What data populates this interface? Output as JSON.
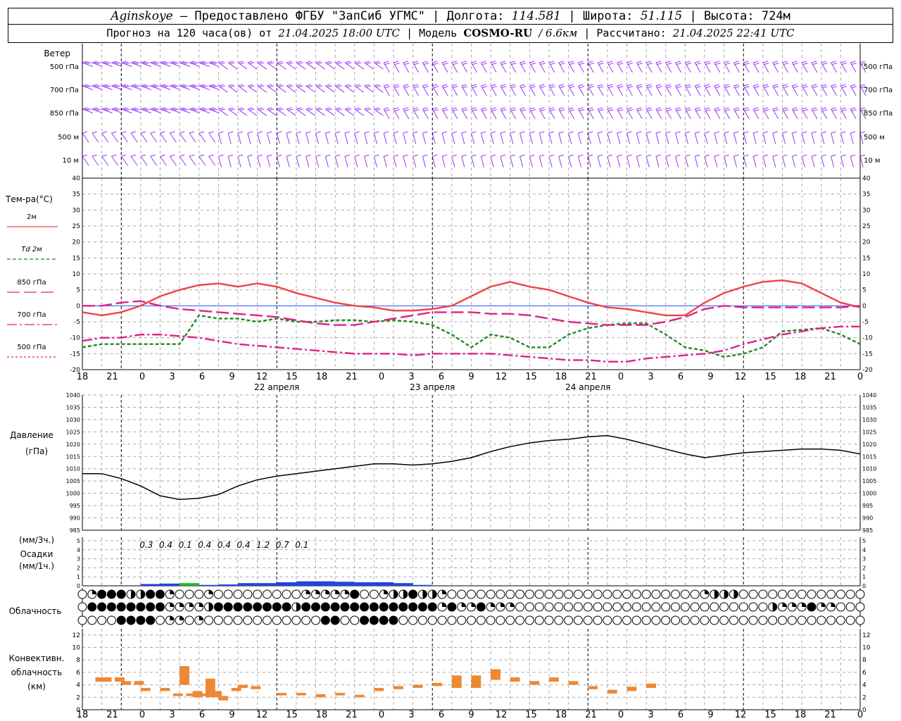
{
  "header": {
    "station": "Aginskoye",
    "provider": "– Предоставлено ФГБУ \"ЗапСиб УГМС\"",
    "lon_label": "Долгота:",
    "lon": "114.581",
    "lat_label": "Широта:",
    "lat": "51.115",
    "alt_label": "Высота:",
    "alt": "724м",
    "forecast_label": "Прогноз на 120 часа(ов) от",
    "forecast_start": "21.04.2025 18:00 UTC",
    "model_label": "Модель",
    "model": "COSMO-RU",
    "res": "/ 6.6км",
    "calc_label": "Рассчитано:",
    "calc": "21.04.2025 22:41 UTC"
  },
  "hour_ticks": [
    "18",
    "21",
    "0",
    "3",
    "6",
    "9",
    "12",
    "15",
    "18",
    "21",
    "0",
    "3",
    "6",
    "9",
    "12",
    "15",
    "18",
    "21",
    "0",
    "3",
    "6",
    "9",
    "12",
    "15",
    "18",
    "21",
    "0"
  ],
  "day_labels": [
    "22 апреля",
    "23 апреля",
    "24 апреля"
  ],
  "wind_panel": {
    "title": "Ветер",
    "levels": [
      "500 гПа",
      "700 гПа",
      "850 гПа",
      "500 м",
      "10 м"
    ],
    "barb_color": "#9933ff"
  },
  "cloud_panel": {
    "label": "Облачность",
    "rows": 3
  },
  "precip_panel": {
    "label1": "(мм/3ч.)",
    "label2": "Осадки",
    "label3": "(мм/1ч.)",
    "y_ticks": [
      "0",
      "1",
      "2",
      "3",
      "4",
      "5"
    ],
    "totals_3h": [
      "0.3",
      "0.4",
      "0.1",
      "0.4",
      "0.4",
      "0.4",
      "1.2",
      "0.7",
      "0.1"
    ]
  },
  "conv_panel": {
    "label1": "Конвективн.",
    "label2": "облачность",
    "label3": "(км)",
    "y_ticks": [
      "0",
      "2",
      "4",
      "6",
      "8",
      "10",
      "12"
    ],
    "color": "#ee8833"
  },
  "chart_data": [
    {
      "type": "line",
      "title": "Тем-ра(°C)",
      "ylim": [
        -20,
        40
      ],
      "y_ticks": [
        -20,
        -15,
        -10,
        -5,
        0,
        5,
        10,
        15,
        20,
        25,
        30,
        35,
        40
      ],
      "x_hours": [
        0,
        3,
        6,
        9,
        12,
        15,
        18,
        21,
        24,
        27,
        30,
        33,
        36,
        39,
        42,
        45,
        48,
        51,
        54,
        57,
        60,
        63,
        66,
        69,
        72,
        75,
        78,
        81,
        84,
        87,
        90,
        93,
        96,
        99,
        102,
        105,
        108,
        111,
        114,
        117,
        120
      ],
      "series": [
        {
          "name": "2м",
          "color": "#ee4444",
          "dash": "",
          "values": [
            -2,
            -3,
            -2,
            0,
            3,
            5,
            6.5,
            7,
            6,
            7,
            6,
            4,
            2.5,
            1,
            0,
            -0.5,
            -1.5,
            -1.5,
            -1,
            0,
            3,
            6,
            7.5,
            6,
            5,
            3,
            1,
            -0.5,
            -1,
            -2,
            -3,
            -3,
            1,
            4,
            6,
            7.5,
            8,
            7,
            4,
            1,
            -0.5
          ]
        },
        {
          "name": "Td 2м",
          "color": "#228822",
          "dash": "5,3",
          "values": [
            -13,
            -12,
            -12,
            -12,
            -12,
            -12,
            -3,
            -4,
            -4,
            -5,
            -4,
            -5,
            -5,
            -4.5,
            -4.5,
            -5,
            -4.5,
            -5,
            -6,
            -9,
            -13,
            -9,
            -10,
            -13,
            -13,
            -9,
            -7,
            -6,
            -5.5,
            -5.5,
            -9,
            -13,
            -14,
            -16,
            -15,
            -13,
            -8,
            -7.5,
            -7,
            -9,
            -12
          ]
        },
        {
          "name": "850 гПа",
          "color": "#dd2288",
          "dash": "18,6",
          "values": [
            0,
            0,
            1,
            1.5,
            0,
            -1,
            -1.5,
            -2,
            -2.5,
            -3,
            -3.5,
            -4.5,
            -5.5,
            -6,
            -6,
            -5,
            -4,
            -3,
            -2,
            -2,
            -2,
            -2.5,
            -2.5,
            -3,
            -4,
            -5,
            -5.5,
            -6,
            -6,
            -6,
            -5,
            -3.5,
            -1,
            0,
            -0.5,
            -0.5,
            -0.5,
            -0.5,
            -0.5,
            -0.5,
            0
          ]
        },
        {
          "name": "700 гПа",
          "color": "#dd2288",
          "dash": "14,4,3,4",
          "values": [
            -11,
            -10,
            -10,
            -9,
            -9,
            -9.5,
            -10,
            -11,
            -12,
            -12.5,
            -13,
            -13.5,
            -14,
            -14.5,
            -15,
            -15,
            -15,
            -15.5,
            -15,
            -15,
            -15,
            -15,
            -15.5,
            -16,
            -16.5,
            -17,
            -17,
            -17.5,
            -17.5,
            -16.5,
            -16,
            -15.5,
            -15,
            -14,
            -12,
            -10.5,
            -9,
            -8,
            -7,
            -6.5,
            -6.5
          ]
        },
        {
          "name": "500 гПа",
          "color": "#dd2288",
          "dash": "3,3",
          "values": []
        }
      ]
    },
    {
      "type": "line",
      "title": "Давление",
      "ylabel": "(гПа)",
      "ylim": [
        985,
        1040
      ],
      "y_ticks": [
        985,
        990,
        995,
        1000,
        1005,
        1010,
        1015,
        1020,
        1025,
        1030,
        1035,
        1040
      ],
      "x_hours": [
        0,
        3,
        6,
        9,
        12,
        15,
        18,
        21,
        24,
        27,
        30,
        33,
        36,
        39,
        42,
        45,
        48,
        51,
        54,
        57,
        60,
        63,
        66,
        69,
        72,
        75,
        78,
        81,
        84,
        87,
        90,
        93,
        96,
        99,
        102,
        105,
        108,
        111,
        114,
        117,
        120
      ],
      "series": [
        {
          "name": "",
          "color": "#000000",
          "values": [
            1008,
            1008,
            1006,
            1003,
            999,
            997.5,
            998,
            999.5,
            1003,
            1005.5,
            1007,
            1008,
            1009,
            1010,
            1011,
            1012,
            1012,
            1011.5,
            1012,
            1013,
            1014.5,
            1017,
            1019,
            1020.5,
            1021.5,
            1022,
            1023,
            1023.5,
            1022,
            1020,
            1018,
            1016,
            1014.5,
            1015.5,
            1016.5,
            1017,
            1017.5,
            1018,
            1018,
            1017.5,
            1016
          ]
        }
      ]
    },
    {
      "type": "bar",
      "title": "Осадки",
      "ylim": [
        0,
        5
      ],
      "x_hours": [
        9,
        12,
        15,
        18,
        21,
        24,
        27,
        30,
        33,
        36,
        39,
        42,
        45,
        48,
        51
      ],
      "values": [
        0.2,
        0.25,
        0.3,
        0.1,
        0.15,
        0.3,
        0.3,
        0.4,
        0.5,
        0.5,
        0.45,
        0.4,
        0.4,
        0.3,
        0.1
      ],
      "colors": [
        "#2244dd",
        "#2244dd",
        "#22bb22",
        "#2244dd",
        "#2244dd",
        "#2244dd",
        "#2244dd",
        "#2244dd",
        "#2244dd",
        "#2244dd",
        "#2244dd",
        "#2244dd",
        "#2244dd",
        "#2244dd",
        "#2244dd"
      ]
    },
    {
      "type": "bar",
      "title": "Конвективн. облачность",
      "ylim": [
        0,
        13
      ],
      "bars": [
        {
          "h": 2.0,
          "lo": 4.5,
          "hi": 5.2
        },
        {
          "h": 3.0,
          "lo": 4.5,
          "hi": 5.2
        },
        {
          "h": 5.0,
          "lo": 4.5,
          "hi": 5.2
        },
        {
          "h": 6.0,
          "lo": 4.0,
          "hi": 4.6
        },
        {
          "h": 8.0,
          "lo": 4.0,
          "hi": 4.6
        },
        {
          "h": 9.0,
          "lo": 3.0,
          "hi": 3.5
        },
        {
          "h": 12.0,
          "lo": 3.0,
          "hi": 3.5
        },
        {
          "h": 14.0,
          "lo": 2.2,
          "hi": 2.6
        },
        {
          "h": 15.0,
          "lo": 4.0,
          "hi": 7.0
        },
        {
          "h": 16.0,
          "lo": 2.2,
          "hi": 2.6
        },
        {
          "h": 17.0,
          "lo": 2.0,
          "hi": 3.0
        },
        {
          "h": 18.0,
          "lo": 2.2,
          "hi": 2.6
        },
        {
          "h": 19.0,
          "lo": 2.0,
          "hi": 5.0
        },
        {
          "h": 20.0,
          "lo": 2.0,
          "hi": 3.0
        },
        {
          "h": 21.0,
          "lo": 1.5,
          "hi": 2.2
        },
        {
          "h": 23.0,
          "lo": 3.0,
          "hi": 3.5
        },
        {
          "h": 24.0,
          "lo": 3.5,
          "hi": 4.0
        },
        {
          "h": 26.0,
          "lo": 3.3,
          "hi": 3.8
        },
        {
          "h": 30.0,
          "lo": 2.3,
          "hi": 2.7
        },
        {
          "h": 33.0,
          "lo": 2.3,
          "hi": 2.7
        },
        {
          "h": 36.0,
          "lo": 2.0,
          "hi": 2.5
        },
        {
          "h": 39.0,
          "lo": 2.3,
          "hi": 2.7
        },
        {
          "h": 42.0,
          "lo": 2.0,
          "hi": 2.4
        },
        {
          "h": 45.0,
          "lo": 3.0,
          "hi": 3.5
        },
        {
          "h": 48.0,
          "lo": 3.3,
          "hi": 3.8
        },
        {
          "h": 51.0,
          "lo": 3.5,
          "hi": 4.0
        },
        {
          "h": 54.0,
          "lo": 3.8,
          "hi": 4.3
        },
        {
          "h": 57.0,
          "lo": 3.5,
          "hi": 5.5
        },
        {
          "h": 60.0,
          "lo": 3.5,
          "hi": 5.5
        },
        {
          "h": 63.0,
          "lo": 4.8,
          "hi": 6.5
        },
        {
          "h": 66.0,
          "lo": 4.5,
          "hi": 5.2
        },
        {
          "h": 69.0,
          "lo": 4.0,
          "hi": 4.6
        },
        {
          "h": 72.0,
          "lo": 4.5,
          "hi": 5.2
        },
        {
          "h": 75.0,
          "lo": 4.0,
          "hi": 4.6
        },
        {
          "h": 78.0,
          "lo": 3.3,
          "hi": 3.8
        },
        {
          "h": 81.0,
          "lo": 2.6,
          "hi": 3.2
        },
        {
          "h": 84.0,
          "lo": 3.0,
          "hi": 3.7
        },
        {
          "h": 87.0,
          "lo": 3.5,
          "hi": 4.2
        }
      ]
    }
  ]
}
